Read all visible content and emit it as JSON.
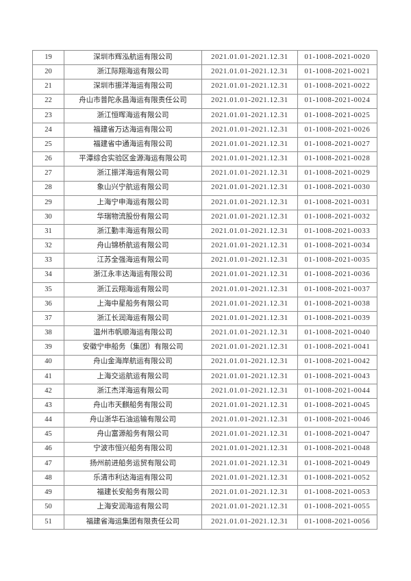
{
  "document": {
    "background": "#ffffff",
    "text_color": "#2b2b2b",
    "border_color": "#8c8c8c"
  },
  "table": {
    "rows": [
      {
        "no": "19",
        "company": "深圳市辉泓航运有限公司",
        "period": "2021.01.01-2021.12.31",
        "certificate_no": "01-1008-2021-0020"
      },
      {
        "no": "20",
        "company": "浙江际翔海运有限公司",
        "period": "2021.01.01-2021.12.31",
        "certificate_no": "01-1008-2021-0021"
      },
      {
        "no": "21",
        "company": "深圳市振洋海运有限公司",
        "period": "2021.01.01-2021.12.31",
        "certificate_no": "01-1008-2021-0022"
      },
      {
        "no": "22",
        "company": "舟山市普陀永昌海运有限责任公司",
        "period": "2021.01.01-2021.12.31",
        "certificate_no": "01-1008-2021-0024"
      },
      {
        "no": "23",
        "company": "浙江恒晖海运有限公司",
        "period": "2021.01.01-2021.12.31",
        "certificate_no": "01-1008-2021-0025"
      },
      {
        "no": "24",
        "company": "福建省万达海运有限公司",
        "period": "2021.01.01-2021.12.31",
        "certificate_no": "01-1008-2021-0026"
      },
      {
        "no": "25",
        "company": "福建省中通海运有限公司",
        "period": "2021.01.01-2021.12.31",
        "certificate_no": "01-1008-2021-0027"
      },
      {
        "no": "26",
        "company": "平潭综合实验区金源海运有限公司",
        "period": "2021.01.01-2021.12.31",
        "certificate_no": "01-1008-2021-0028"
      },
      {
        "no": "27",
        "company": "浙江振洋海运有限公司",
        "period": "2021.01.01-2021.12.31",
        "certificate_no": "01-1008-2021-0029"
      },
      {
        "no": "28",
        "company": "象山兴宁航运有限公司",
        "period": "2021.01.01-2021.12.31",
        "certificate_no": "01-1008-2021-0030"
      },
      {
        "no": "29",
        "company": "上海宁申海运有限公司",
        "period": "2021.01.01-2021.12.31",
        "certificate_no": "01-1008-2021-0031"
      },
      {
        "no": "30",
        "company": "华瑞物流股份有限公司",
        "period": "2021.01.01-2021.12.31",
        "certificate_no": "01-1008-2021-0032"
      },
      {
        "no": "31",
        "company": "浙江勤丰海运有限公司",
        "period": "2021.01.01-2021.12.31",
        "certificate_no": "01-1008-2021-0033"
      },
      {
        "no": "32",
        "company": "舟山锦桥航运有限公司",
        "period": "2021.01.01-2021.12.31",
        "certificate_no": "01-1008-2021-0034"
      },
      {
        "no": "33",
        "company": "江苏全强海运有限公司",
        "period": "2021.01.01-2021.12.31",
        "certificate_no": "01-1008-2021-0035"
      },
      {
        "no": "34",
        "company": "浙江永丰达海运有限公司",
        "period": "2021.01.01-2021.12.31",
        "certificate_no": "01-1008-2021-0036"
      },
      {
        "no": "35",
        "company": "浙江云翔海运有限公司",
        "period": "2021.01.01-2021.12.31",
        "certificate_no": "01-1008-2021-0037"
      },
      {
        "no": "36",
        "company": "上海中星船务有限公司",
        "period": "2021.01.01-2021.12.31",
        "certificate_no": "01-1008-2021-0038"
      },
      {
        "no": "37",
        "company": "浙江长润海运有限公司",
        "period": "2021.01.01-2021.12.31",
        "certificate_no": "01-1008-2021-0039"
      },
      {
        "no": "38",
        "company": "温州市帆顺海运有限公司",
        "period": "2021.01.01-2021.12.31",
        "certificate_no": "01-1008-2021-0040"
      },
      {
        "no": "39",
        "company": "安徽宁申船务（集团）有限公司",
        "period": "2021.01.01-2021.12.31",
        "certificate_no": "01-1008-2021-0041"
      },
      {
        "no": "40",
        "company": "舟山金海岸航运有限公司",
        "period": "2021.01.01-2021.12.31",
        "certificate_no": "01-1008-2021-0042"
      },
      {
        "no": "41",
        "company": "上海交运航运有限公司",
        "period": "2021.01.01-2021.12.31",
        "certificate_no": "01-1008-2021-0043"
      },
      {
        "no": "42",
        "company": "浙江杰洋海运有限公司",
        "period": "2021.01.01-2021.12.31",
        "certificate_no": "01-1008-2021-0044"
      },
      {
        "no": "43",
        "company": "舟山市天麒船务有限公司",
        "period": "2021.01.01-2021.12.31",
        "certificate_no": "01-1008-2021-0045"
      },
      {
        "no": "44",
        "company": "舟山浙华石油运输有限公司",
        "period": "2021.01.01-2021.12.31",
        "certificate_no": "01-1008-2021-0046"
      },
      {
        "no": "45",
        "company": "舟山富源船务有限公司",
        "period": "2021.01.01-2021.12.31",
        "certificate_no": "01-1008-2021-0047"
      },
      {
        "no": "46",
        "company": "宁波市恒兴船务有限公司",
        "period": "2021.01.01-2021.12.31",
        "certificate_no": "01-1008-2021-0048"
      },
      {
        "no": "47",
        "company": "扬州前进船务运贸有限公司",
        "period": "2021.01.01-2021.12.31",
        "certificate_no": "01-1008-2021-0049"
      },
      {
        "no": "48",
        "company": "乐清市利达海运有限公司",
        "period": "2021.01.01-2021.12.31",
        "certificate_no": "01-1008-2021-0052"
      },
      {
        "no": "49",
        "company": "福建长安船务有限公司",
        "period": "2021.01.01-2021.12.31",
        "certificate_no": "01-1008-2021-0053"
      },
      {
        "no": "50",
        "company": "上海安润海运有限公司",
        "period": "2021.01.01-2021.12.31",
        "certificate_no": "01-1008-2021-0055"
      },
      {
        "no": "51",
        "company": "福建省海运集团有限责任公司",
        "period": "2021.01.01-2021.12.31",
        "certificate_no": "01-1008-2021-0056"
      }
    ]
  }
}
